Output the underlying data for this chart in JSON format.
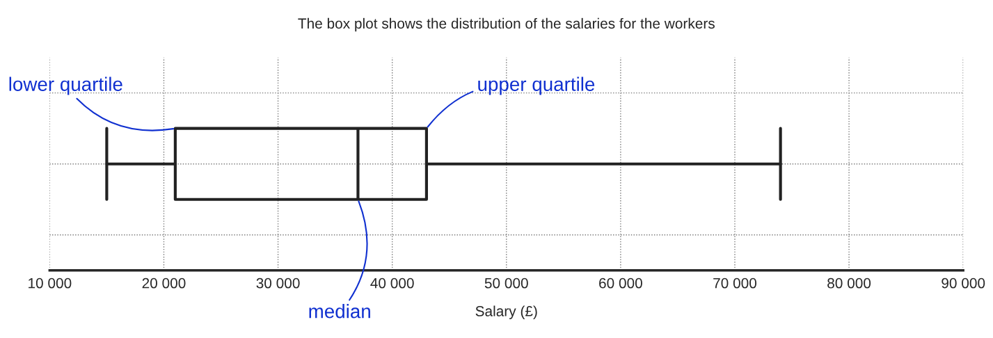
{
  "chart_data": {
    "type": "box",
    "title": "The box plot shows the distribution of the salaries for the workers",
    "xlabel": "Salary (£)",
    "boxes": [
      {
        "low": 15000,
        "q1": 21000,
        "median": 37000,
        "q3": 43000,
        "high": 74000
      }
    ],
    "orientation": "horizontal",
    "xlim": [
      10000,
      90000
    ],
    "xticks": [
      {
        "value": 10000,
        "label": "10 000"
      },
      {
        "value": 20000,
        "label": "20 000"
      },
      {
        "value": 30000,
        "label": "30 000"
      },
      {
        "value": 40000,
        "label": "40 000"
      },
      {
        "value": 50000,
        "label": "50 000"
      },
      {
        "value": 60000,
        "label": "60 000"
      },
      {
        "value": 70000,
        "label": "70 000"
      },
      {
        "value": 80000,
        "label": "80 000"
      },
      {
        "value": 90000,
        "label": "90 000"
      }
    ],
    "annotations": [
      "lower quartile",
      "upper quartile",
      "median"
    ],
    "grid": true,
    "tick_labels": "x",
    "color": "#222222"
  }
}
